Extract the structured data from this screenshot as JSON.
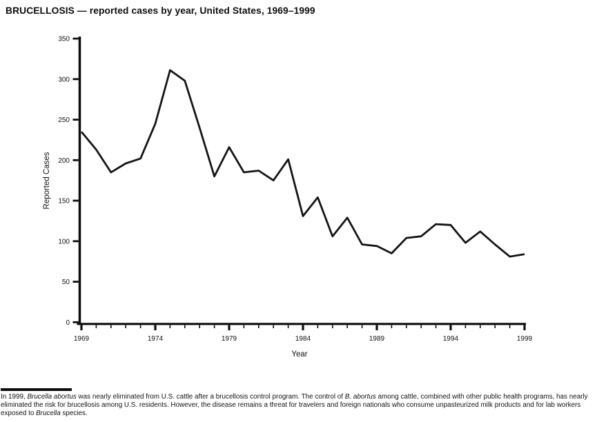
{
  "title": "BRUCELLOSIS — reported cases by year, United States, 1969–1999",
  "chart_data": {
    "type": "line",
    "title": "BRUCELLOSIS — reported cases by year, United States, 1969–1999",
    "xlabel": "Year",
    "ylabel": "Reported Cases",
    "x": [
      1969,
      1970,
      1971,
      1972,
      1973,
      1974,
      1975,
      1976,
      1977,
      1978,
      1979,
      1980,
      1981,
      1982,
      1983,
      1984,
      1985,
      1986,
      1987,
      1988,
      1989,
      1990,
      1991,
      1992,
      1993,
      1994,
      1995,
      1996,
      1997,
      1998,
      1999
    ],
    "values": [
      235,
      213,
      185,
      196,
      202,
      245,
      311,
      298,
      240,
      180,
      216,
      185,
      187,
      175,
      201,
      131,
      154,
      106,
      129,
      96,
      94,
      85,
      104,
      106,
      121,
      120,
      98,
      112,
      96,
      81,
      84
    ],
    "ylim": [
      0,
      350
    ],
    "ytick_interval": 50,
    "yticks": [
      0,
      50,
      100,
      150,
      200,
      250,
      300,
      350
    ],
    "xticks": [
      1969,
      1974,
      1979,
      1984,
      1989,
      1994,
      1999
    ],
    "grid": false,
    "legend": "none",
    "line_color": "#141414",
    "axis_color": "#0d0d0d"
  },
  "footnote": {
    "segments": [
      {
        "text": "In 1999, ",
        "italic": false
      },
      {
        "text": "Brucella abortus",
        "italic": true
      },
      {
        "text": " was nearly eliminated from U.S. cattle after a brucellosis control program. The control of ",
        "italic": false
      },
      {
        "text": "B. abortus",
        "italic": true
      },
      {
        "text": " among cattle, combined with other public health programs, has nearly eliminated the risk for brucellosis among U.S. residents. However, the disease remains a threat for travelers and foreign nationals who consume unpasteurized milk products and for lab workers exposed to ",
        "italic": false
      },
      {
        "text": "Brucella",
        "italic": true
      },
      {
        "text": " species.",
        "italic": false
      }
    ]
  }
}
